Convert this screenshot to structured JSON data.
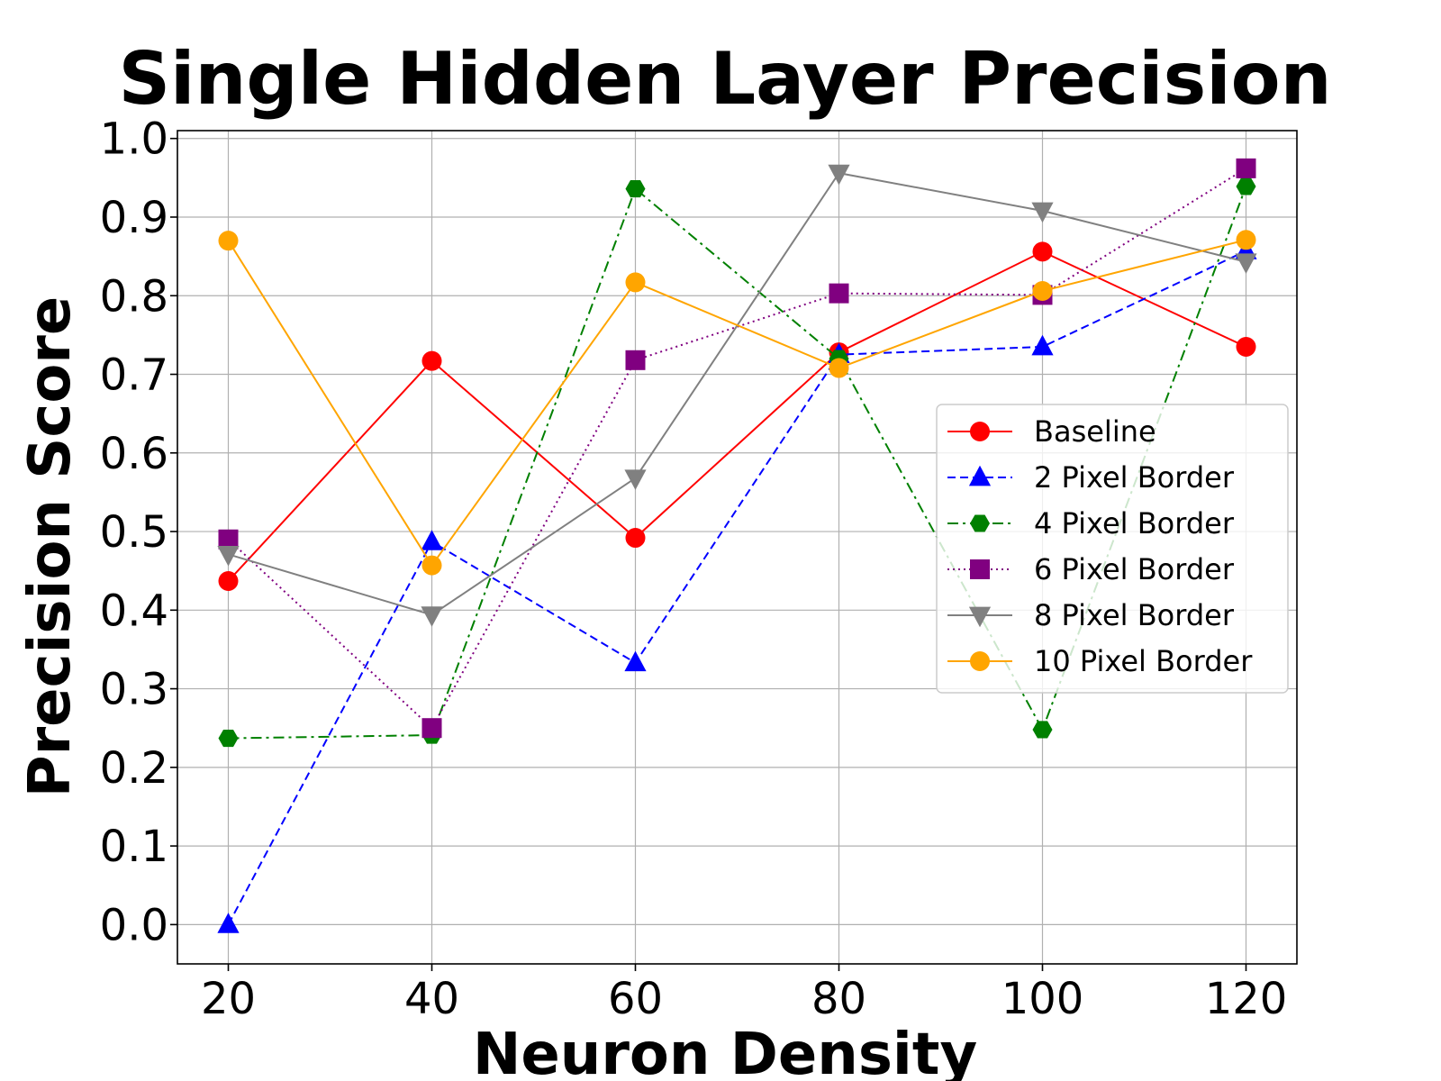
{
  "chart_data": {
    "type": "line",
    "title": "Single Hidden Layer Precision",
    "xlabel": "Neuron Density",
    "ylabel": "Precision Score",
    "x": [
      20,
      40,
      60,
      80,
      100,
      120
    ],
    "xlim": [
      15,
      125
    ],
    "ylim": [
      -0.05,
      1.01
    ],
    "xticks": [
      "20",
      "40",
      "60",
      "80",
      "100",
      "120"
    ],
    "yticks": [
      "0.0",
      "0.1",
      "0.2",
      "0.3",
      "0.4",
      "0.5",
      "0.6",
      "0.7",
      "0.8",
      "0.9",
      "1.0"
    ],
    "grid": true,
    "legend_position": "center-right",
    "series": [
      {
        "name": "Baseline",
        "color": "#ff0000",
        "dash": "solid",
        "marker": "circle",
        "values": [
          0.437,
          0.717,
          0.492,
          0.728,
          0.856,
          0.735
        ]
      },
      {
        "name": "2 Pixel Border",
        "color": "#0000ff",
        "dash": "dashed",
        "marker": "triangle-up",
        "values": [
          0.0,
          0.487,
          0.333,
          0.725,
          0.735,
          0.857
        ]
      },
      {
        "name": "4 Pixel Border",
        "color": "#008000",
        "dash": "dashdot",
        "marker": "hexagon",
        "values": [
          0.237,
          0.241,
          0.936,
          0.72,
          0.248,
          0.939
        ]
      },
      {
        "name": "6 Pixel Border",
        "color": "#800080",
        "dash": "dotted",
        "marker": "square",
        "values": [
          0.49,
          0.25,
          0.718,
          0.803,
          0.801,
          0.962
        ]
      },
      {
        "name": "8 Pixel Border",
        "color": "#808080",
        "dash": "solid",
        "marker": "triangle-down",
        "values": [
          0.471,
          0.394,
          0.568,
          0.956,
          0.908,
          0.843
        ]
      },
      {
        "name": "10 Pixel Border",
        "color": "#ffa500",
        "dash": "solid",
        "marker": "circle",
        "values": [
          0.87,
          0.457,
          0.817,
          0.708,
          0.806,
          0.871
        ]
      }
    ]
  }
}
